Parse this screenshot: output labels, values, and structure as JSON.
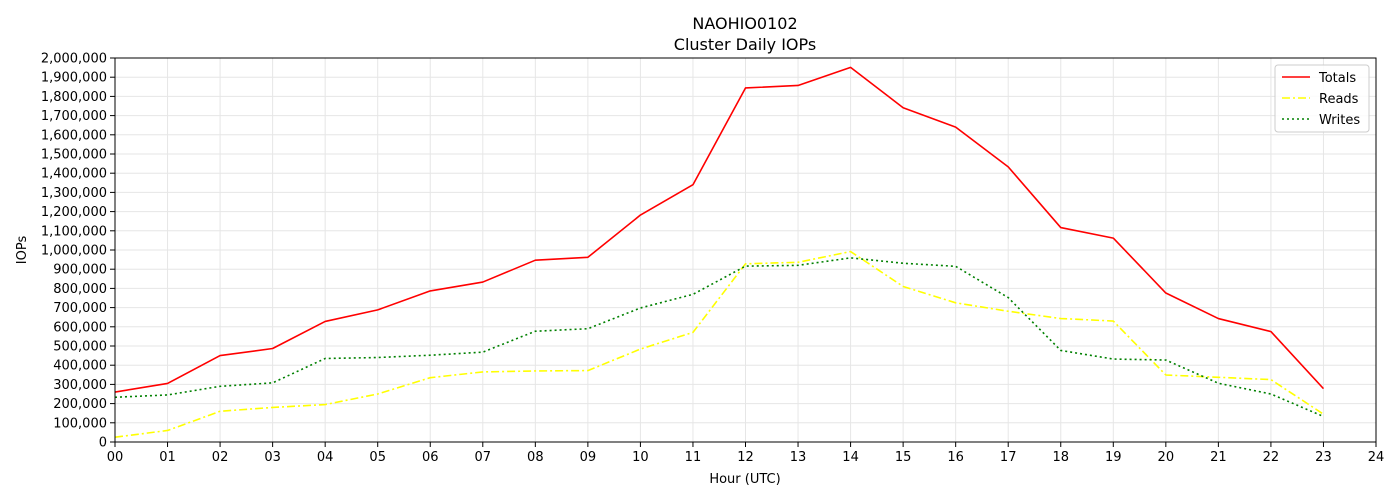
{
  "chart_data": {
    "type": "line",
    "title": "NAOHIO0102",
    "subtitle": "Cluster Daily IOPs",
    "xlabel": "Hour (UTC)",
    "ylabel": "IOPs",
    "x_ticks": [
      "00",
      "01",
      "02",
      "03",
      "04",
      "05",
      "06",
      "07",
      "08",
      "09",
      "10",
      "11",
      "12",
      "13",
      "14",
      "15",
      "16",
      "17",
      "18",
      "19",
      "20",
      "21",
      "22",
      "23",
      "24"
    ],
    "xlim": [
      0,
      24
    ],
    "ylim": [
      0,
      2000000
    ],
    "y_ticks": [
      "0",
      "100,000",
      "200,000",
      "300,000",
      "400,000",
      "500,000",
      "600,000",
      "700,000",
      "800,000",
      "900,000",
      "1,000,000",
      "1,100,000",
      "1,200,000",
      "1,300,000",
      "1,400,000",
      "1,500,000",
      "1,600,000",
      "1,700,000",
      "1,800,000",
      "1,900,000",
      "2,000,000"
    ],
    "grid": true,
    "legend_position": "top-right",
    "x": [
      0,
      1,
      2,
      3,
      4,
      5,
      6,
      7,
      8,
      9,
      10,
      11,
      12,
      13,
      14,
      15,
      16,
      17,
      18,
      19,
      20,
      21,
      22,
      23
    ],
    "series": [
      {
        "name": "Totals",
        "color": "#ff0000",
        "style": "solid",
        "values": [
          260000,
          305000,
          450000,
          487000,
          628000,
          688000,
          787000,
          833000,
          947000,
          962000,
          1182000,
          1340000,
          1844000,
          1857000,
          1951000,
          1741000,
          1640000,
          1433000,
          1117000,
          1062000,
          776000,
          643000,
          575000,
          278000
        ]
      },
      {
        "name": "Reads",
        "color": "#ffff00",
        "style": "dashdot",
        "values": [
          25000,
          60000,
          160000,
          180000,
          195000,
          250000,
          335000,
          365000,
          370000,
          372000,
          484000,
          571000,
          928000,
          936000,
          992000,
          810000,
          725000,
          681000,
          643000,
          630000,
          349000,
          337000,
          325000,
          145000
        ]
      },
      {
        "name": "Writes",
        "color": "#008000",
        "style": "dotted",
        "values": [
          233000,
          245000,
          290000,
          308000,
          435000,
          440000,
          452000,
          468000,
          577000,
          590000,
          698000,
          769000,
          916000,
          920000,
          959000,
          931000,
          915000,
          752000,
          477000,
          432000,
          427000,
          306000,
          250000,
          133000
        ]
      }
    ]
  }
}
